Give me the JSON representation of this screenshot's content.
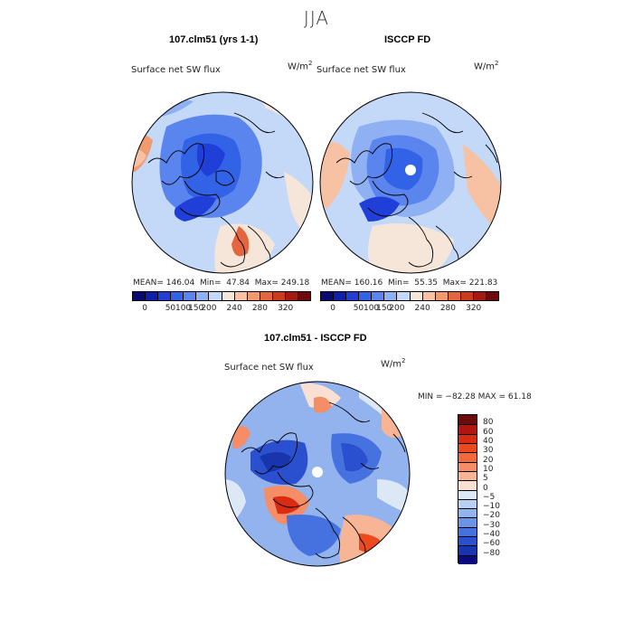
{
  "figure": {
    "title": "JJA"
  },
  "panels": [
    {
      "id": "model",
      "title": "107.clm51 (yrs 1-1)",
      "field": "Surface net SW flux",
      "units": "W/m",
      "mean_label": "MEAN=",
      "mean": "146.04",
      "min_label": "Min=",
      "min": "47.84",
      "max_label": "Max=",
      "max": "249.18",
      "has_pole_hole": false
    },
    {
      "id": "obs",
      "title": "ISCCP FD",
      "field": "Surface net SW flux",
      "units": "W/m",
      "mean_label": "MEAN=",
      "mean": "160.16",
      "min_label": "Min=",
      "min": "55.35",
      "max_label": "Max=",
      "max": "221.83",
      "has_pole_hole": true
    }
  ],
  "diff": {
    "title": "107.clm51 - ISCCP FD",
    "field": "Surface net SW flux",
    "units": "W/m",
    "minmax": "MIN = −82.28 MAX =  61.18"
  },
  "abs_colorbar": {
    "colors": [
      "#0a0a6e",
      "#0f1fa8",
      "#1f3fd8",
      "#3262e6",
      "#5a85ee",
      "#8fb0f3",
      "#c4d8f7",
      "#f6e6da",
      "#f7c2a4",
      "#f19a70",
      "#e4663f",
      "#cb3a1c",
      "#a51910",
      "#6e0a0a"
    ],
    "labels": [
      "0",
      "50",
      "100",
      "150",
      "200",
      "240",
      "280",
      "320"
    ]
  },
  "diff_colorbar": {
    "colors": [
      "#6e0a0a",
      "#b0160f",
      "#d92c12",
      "#ec4a1e",
      "#f26a3c",
      "#f58e66",
      "#f7b596",
      "#fae0d2",
      "#dde8f7",
      "#b9cff3",
      "#92b3ee",
      "#6b93e8",
      "#4672e0",
      "#2a50cf",
      "#1935ad",
      "#0a0a7e"
    ],
    "labels": [
      "80",
      "60",
      "40",
      "30",
      "20",
      "10",
      "5",
      "0",
      "−5",
      "−10",
      "−20",
      "−30",
      "−40",
      "−60",
      "−80"
    ]
  }
}
